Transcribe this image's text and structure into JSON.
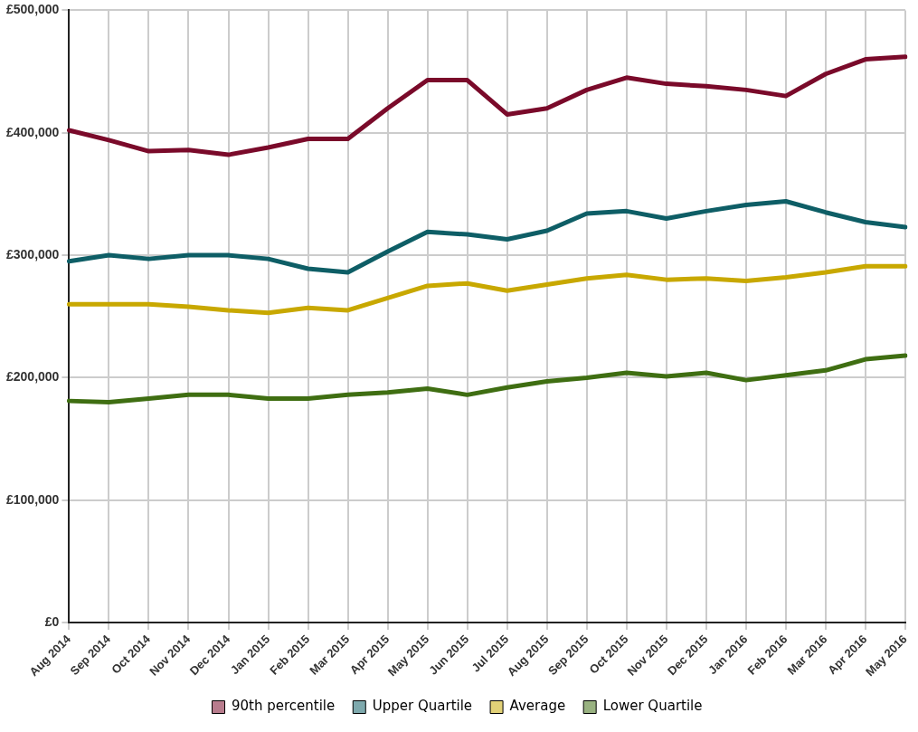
{
  "chart_data": {
    "type": "line",
    "categories": [
      "Aug 2014",
      "Sep 2014",
      "Oct 2014",
      "Nov 2014",
      "Dec 2014",
      "Jan 2015",
      "Feb 2015",
      "Mar 2015",
      "Apr 2015",
      "May 2015",
      "Jun 2015",
      "Jul 2015",
      "Aug 2015",
      "Sep 2015",
      "Oct 2015",
      "Nov 2015",
      "Dec 2015",
      "Jan 2016",
      "Feb 2016",
      "Mar 2016",
      "Apr 2016",
      "May 2016"
    ],
    "series": [
      {
        "name": "90th percentile",
        "color": "#7a0a2a",
        "values": [
          402000,
          394000,
          385000,
          386000,
          382000,
          388000,
          395000,
          395000,
          420000,
          443000,
          443000,
          415000,
          420000,
          435000,
          445000,
          440000,
          438000,
          435000,
          430000,
          448000,
          460000,
          462000
        ]
      },
      {
        "name": "Upper Quartile",
        "color": "#0e5e66",
        "values": [
          295000,
          300000,
          297000,
          300000,
          300000,
          297000,
          289000,
          286000,
          303000,
          319000,
          317000,
          313000,
          320000,
          334000,
          336000,
          330000,
          336000,
          341000,
          344000,
          335000,
          327000,
          323000
        ]
      },
      {
        "name": "Average",
        "color": "#c8a800",
        "values": [
          260000,
          260000,
          260000,
          258000,
          255000,
          253000,
          257000,
          255000,
          265000,
          275000,
          277000,
          271000,
          276000,
          281000,
          284000,
          280000,
          281000,
          279000,
          282000,
          286000,
          291000,
          291000
        ]
      },
      {
        "name": "Lower Quartile",
        "color": "#3f6e12",
        "values": [
          181000,
          180000,
          183000,
          186000,
          186000,
          183000,
          183000,
          186000,
          188000,
          191000,
          186000,
          192000,
          197000,
          200000,
          204000,
          201000,
          204000,
          198000,
          202000,
          206000,
          215000,
          218000
        ]
      }
    ],
    "ylim": [
      0,
      500000
    ],
    "yticks": [
      {
        "value": 0,
        "label": "£0"
      },
      {
        "value": 100000,
        "label": "£100,000"
      },
      {
        "value": 200000,
        "label": "£200,000"
      },
      {
        "value": 300000,
        "label": "£300,000"
      },
      {
        "value": 400000,
        "label": "£400,000"
      },
      {
        "value": 500000,
        "label": "£500,000"
      }
    ],
    "grid": true,
    "legend": "bottom",
    "marker": "none",
    "line_style": "solid"
  }
}
